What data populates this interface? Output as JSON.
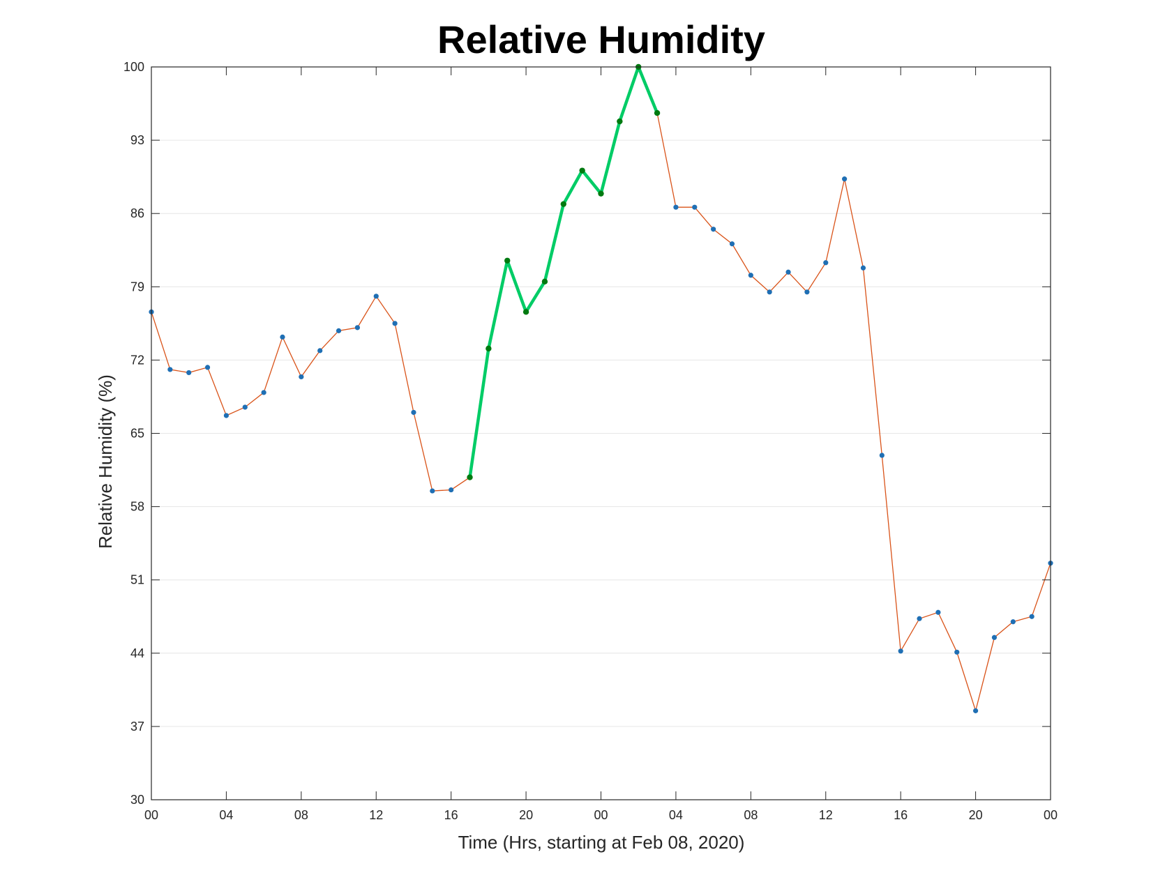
{
  "chart_data": {
    "type": "line",
    "title": "Relative Humidity",
    "xlabel": "Time (Hrs, starting at Feb 08, 2020)",
    "ylabel": "Relative Humidity (%)",
    "ylim": [
      30,
      100
    ],
    "xlim": [
      0,
      48
    ],
    "yticks": [
      30,
      37,
      44,
      51,
      58,
      65,
      72,
      79,
      86,
      93,
      100
    ],
    "xtick_positions": [
      0,
      4,
      8,
      12,
      16,
      20,
      24,
      28,
      32,
      36,
      40,
      44,
      48
    ],
    "xtick_labels": [
      "00",
      "04",
      "08",
      "12",
      "16",
      "20",
      "00",
      "04",
      "08",
      "12",
      "16",
      "20",
      "00"
    ],
    "grid": "horizontal",
    "x": [
      0,
      1,
      2,
      3,
      4,
      5,
      6,
      7,
      8,
      9,
      10,
      11,
      12,
      13,
      14,
      15,
      16,
      17,
      18,
      19,
      20,
      21,
      22,
      23,
      24,
      25,
      26,
      27,
      28,
      29,
      30,
      31,
      32,
      33,
      34,
      35,
      36,
      37,
      38,
      39,
      40,
      41,
      42,
      43,
      44,
      45,
      46,
      47,
      48
    ],
    "series": [
      {
        "color": "#d95319",
        "marker_color": "#1f6fb4",
        "values": [
          76.6,
          71.1,
          70.8,
          71.3,
          66.7,
          67.5,
          68.9,
          74.2,
          70.4,
          72.9,
          74.8,
          75.1,
          78.1,
          75.5,
          67.0,
          59.5,
          59.6,
          60.8,
          73.1,
          81.5,
          76.6,
          79.5,
          86.9,
          90.1,
          87.9,
          94.8,
          100.0,
          95.6,
          86.6,
          86.6,
          84.5,
          83.1,
          80.1,
          78.5,
          80.4,
          78.5,
          81.3,
          89.3,
          80.8,
          62.9,
          44.2,
          47.3,
          47.9,
          44.1,
          38.5,
          45.5,
          47.0,
          47.5,
          52.6
        ]
      },
      {
        "color": "#00cc66",
        "marker_color": "#007a10",
        "highlight_range": [
          17,
          27
        ]
      }
    ],
    "colors": {
      "grid": "#e6e6e6",
      "axis": "#262626"
    }
  }
}
